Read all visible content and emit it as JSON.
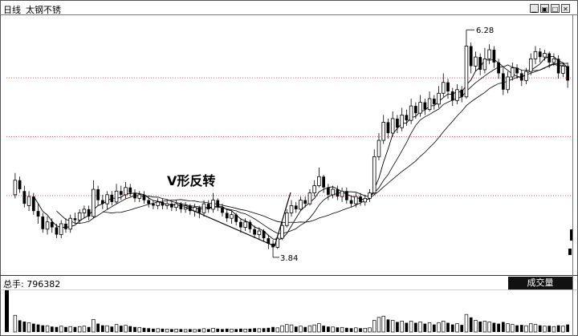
{
  "header": {
    "period_label": "日线",
    "stock_name": "太钢不锈"
  },
  "window_buttons": [
    "▁",
    "▣",
    "□",
    "✕"
  ],
  "annotations": {
    "pattern_label": "V形反转",
    "high_label": "6.28",
    "low_label": "3.84"
  },
  "volume_panel": {
    "total_label": "总手: 796382",
    "badge_label": "成交量"
  },
  "colors": {
    "up": "#000000",
    "down": "#000000",
    "grid": "#c00000",
    "ma": "#000000"
  },
  "chart_data": {
    "type": "candlestick",
    "price_ylim": [
      3.6,
      6.45
    ],
    "price_gridlines": [
      5.75,
      5.1,
      4.45
    ],
    "high_point": 6.28,
    "low_point": 3.84,
    "moving_averages": [
      "MA5",
      "MA10",
      "MA20"
    ],
    "volume_scale_max": 100,
    "candles": [
      [
        4.46,
        4.62,
        4.7,
        4.42,
        40
      ],
      [
        4.62,
        4.52,
        4.66,
        4.48,
        28
      ],
      [
        4.5,
        4.36,
        4.56,
        4.32,
        25
      ],
      [
        4.34,
        4.44,
        4.5,
        4.28,
        22
      ],
      [
        4.44,
        4.28,
        4.48,
        4.24,
        20
      ],
      [
        4.28,
        4.22,
        4.36,
        4.14,
        18
      ],
      [
        4.22,
        4.08,
        4.26,
        4.04,
        16
      ],
      [
        4.08,
        4.16,
        4.22,
        4.02,
        15
      ],
      [
        4.16,
        4.1,
        4.2,
        4.04,
        13
      ],
      [
        4.1,
        4.02,
        4.14,
        3.98,
        12
      ],
      [
        4.02,
        4.14,
        4.18,
        3.98,
        14
      ],
      [
        4.14,
        4.08,
        4.2,
        4.04,
        12
      ],
      [
        4.08,
        4.2,
        4.24,
        4.04,
        13
      ],
      [
        4.2,
        4.18,
        4.26,
        4.14,
        12
      ],
      [
        4.18,
        4.26,
        4.3,
        4.14,
        13
      ],
      [
        4.26,
        4.3,
        4.34,
        4.2,
        14
      ],
      [
        4.3,
        4.22,
        4.34,
        4.18,
        12
      ],
      [
        4.22,
        4.52,
        4.62,
        4.2,
        30
      ],
      [
        4.52,
        4.4,
        4.56,
        4.34,
        20
      ],
      [
        4.4,
        4.36,
        4.46,
        4.3,
        16
      ],
      [
        4.36,
        4.46,
        4.5,
        4.3,
        15
      ],
      [
        4.46,
        4.38,
        4.5,
        4.34,
        13
      ],
      [
        4.38,
        4.5,
        4.58,
        4.36,
        18
      ],
      [
        4.5,
        4.46,
        4.56,
        4.4,
        15
      ],
      [
        4.46,
        4.54,
        4.6,
        4.42,
        16
      ],
      [
        4.54,
        4.48,
        4.58,
        4.44,
        14
      ],
      [
        4.48,
        4.42,
        4.52,
        4.38,
        12
      ],
      [
        4.42,
        4.46,
        4.5,
        4.38,
        11
      ],
      [
        4.46,
        4.4,
        4.5,
        4.36,
        10
      ],
      [
        4.4,
        4.36,
        4.44,
        4.32,
        9
      ],
      [
        4.36,
        4.34,
        4.4,
        4.3,
        8
      ],
      [
        4.34,
        4.38,
        4.42,
        4.3,
        8
      ],
      [
        4.38,
        4.34,
        4.42,
        4.3,
        8
      ],
      [
        4.34,
        4.36,
        4.4,
        4.3,
        7
      ],
      [
        4.36,
        4.32,
        4.4,
        4.28,
        7
      ],
      [
        4.32,
        4.36,
        4.4,
        4.28,
        7
      ],
      [
        4.36,
        4.3,
        4.38,
        4.26,
        7
      ],
      [
        4.3,
        4.34,
        4.38,
        4.26,
        6
      ],
      [
        4.34,
        4.28,
        4.36,
        4.24,
        7
      ],
      [
        4.28,
        4.32,
        4.36,
        4.22,
        6
      ],
      [
        4.32,
        4.26,
        4.34,
        4.2,
        7
      ],
      [
        4.26,
        4.36,
        4.4,
        4.22,
        8
      ],
      [
        4.36,
        4.3,
        4.4,
        4.26,
        7
      ],
      [
        4.3,
        4.4,
        4.48,
        4.26,
        9
      ],
      [
        4.4,
        4.32,
        4.42,
        4.28,
        8
      ],
      [
        4.32,
        4.26,
        4.36,
        4.22,
        7
      ],
      [
        4.26,
        4.2,
        4.3,
        4.16,
        8
      ],
      [
        4.2,
        4.24,
        4.28,
        4.14,
        7
      ],
      [
        4.24,
        4.16,
        4.26,
        4.12,
        7
      ],
      [
        4.16,
        4.1,
        4.2,
        4.04,
        8
      ],
      [
        4.1,
        4.16,
        4.2,
        4.06,
        7
      ],
      [
        4.16,
        4.08,
        4.18,
        4.04,
        8
      ],
      [
        4.08,
        4.02,
        4.12,
        3.98,
        9
      ],
      [
        4.02,
        4.06,
        4.1,
        3.96,
        8
      ],
      [
        4.06,
        3.98,
        4.08,
        3.94,
        9
      ],
      [
        3.98,
        3.92,
        4.02,
        3.86,
        10
      ],
      [
        3.92,
        3.88,
        3.96,
        3.84,
        12
      ],
      [
        3.88,
        3.98,
        4.02,
        3.86,
        10
      ],
      [
        3.98,
        4.12,
        4.16,
        3.96,
        15
      ],
      [
        4.12,
        4.26,
        4.3,
        4.1,
        18
      ],
      [
        4.26,
        4.34,
        4.4,
        4.22,
        17
      ],
      [
        4.34,
        4.3,
        4.38,
        4.26,
        13
      ],
      [
        4.3,
        4.4,
        4.44,
        4.28,
        14
      ],
      [
        4.4,
        4.36,
        4.44,
        4.32,
        12
      ],
      [
        4.36,
        4.48,
        4.52,
        4.34,
        15
      ],
      [
        4.48,
        4.56,
        4.62,
        4.44,
        17
      ],
      [
        4.56,
        4.66,
        4.76,
        4.54,
        20
      ],
      [
        4.66,
        4.54,
        4.68,
        4.48,
        15
      ],
      [
        4.54,
        4.46,
        4.58,
        4.4,
        13
      ],
      [
        4.46,
        4.52,
        4.56,
        4.42,
        12
      ],
      [
        4.52,
        4.44,
        4.56,
        4.4,
        11
      ],
      [
        4.44,
        4.5,
        4.54,
        4.38,
        11
      ],
      [
        4.5,
        4.4,
        4.54,
        4.36,
        10
      ],
      [
        4.4,
        4.36,
        4.44,
        4.32,
        9
      ],
      [
        4.36,
        4.44,
        4.48,
        4.32,
        10
      ],
      [
        4.44,
        4.38,
        4.48,
        4.34,
        9
      ],
      [
        4.38,
        4.42,
        4.46,
        4.34,
        9
      ],
      [
        4.42,
        4.48,
        4.52,
        4.38,
        10
      ],
      [
        4.48,
        4.88,
        4.96,
        4.46,
        28
      ],
      [
        4.88,
        5.06,
        5.14,
        4.84,
        35
      ],
      [
        5.06,
        5.26,
        5.34,
        5.02,
        38
      ],
      [
        5.26,
        5.14,
        5.3,
        5.08,
        30
      ],
      [
        5.14,
        5.3,
        5.38,
        5.1,
        28
      ],
      [
        5.3,
        5.2,
        5.34,
        5.14,
        24
      ],
      [
        5.2,
        5.34,
        5.42,
        5.16,
        26
      ],
      [
        5.34,
        5.28,
        5.4,
        5.22,
        22
      ],
      [
        5.28,
        5.44,
        5.52,
        5.24,
        26
      ],
      [
        5.44,
        5.36,
        5.48,
        5.3,
        22
      ],
      [
        5.36,
        5.48,
        5.56,
        5.32,
        24
      ],
      [
        5.48,
        5.4,
        5.52,
        5.34,
        20
      ],
      [
        5.4,
        5.52,
        5.6,
        5.38,
        22
      ],
      [
        5.52,
        5.46,
        5.56,
        5.4,
        18
      ],
      [
        5.46,
        5.58,
        5.66,
        5.42,
        22
      ],
      [
        5.58,
        5.7,
        5.8,
        5.54,
        26
      ],
      [
        5.7,
        5.6,
        5.74,
        5.52,
        22
      ],
      [
        5.6,
        5.5,
        5.64,
        5.44,
        18
      ],
      [
        5.5,
        5.62,
        5.68,
        5.46,
        20
      ],
      [
        5.62,
        5.54,
        5.66,
        5.48,
        17
      ],
      [
        5.54,
        6.1,
        6.28,
        5.52,
        42
      ],
      [
        6.1,
        5.88,
        6.14,
        5.8,
        35
      ],
      [
        5.88,
        5.98,
        6.04,
        5.82,
        28
      ],
      [
        5.98,
        5.84,
        6.02,
        5.78,
        25
      ],
      [
        5.84,
        5.96,
        6.08,
        5.8,
        26
      ],
      [
        5.96,
        6.06,
        6.12,
        5.9,
        24
      ],
      [
        6.06,
        5.92,
        6.1,
        5.86,
        22
      ],
      [
        5.92,
        5.8,
        5.96,
        5.74,
        20
      ],
      [
        5.8,
        5.62,
        5.86,
        5.56,
        24
      ],
      [
        5.62,
        5.76,
        5.82,
        5.58,
        20
      ],
      [
        5.76,
        5.86,
        5.92,
        5.72,
        18
      ],
      [
        5.86,
        5.8,
        5.9,
        5.74,
        16
      ],
      [
        5.8,
        5.72,
        5.84,
        5.66,
        17
      ],
      [
        5.72,
        5.82,
        5.86,
        5.68,
        15
      ],
      [
        5.82,
        5.96,
        6.02,
        5.78,
        20
      ],
      [
        5.96,
        6.04,
        6.1,
        5.9,
        18
      ],
      [
        6.04,
        5.98,
        6.08,
        5.92,
        16
      ],
      [
        5.98,
        6.02,
        6.06,
        5.94,
        14
      ],
      [
        6.02,
        5.92,
        6.04,
        5.86,
        15
      ],
      [
        5.92,
        5.96,
        6.02,
        5.88,
        13
      ],
      [
        5.96,
        5.8,
        6.0,
        5.74,
        16
      ],
      [
        5.8,
        5.88,
        5.92,
        5.76,
        14
      ],
      [
        5.88,
        5.72,
        5.92,
        5.64,
        18
      ]
    ]
  }
}
